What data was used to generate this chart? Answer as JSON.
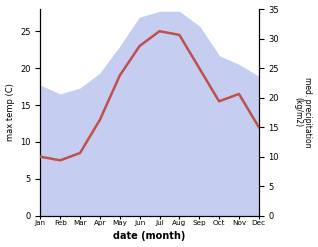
{
  "months": [
    "Jan",
    "Feb",
    "Mar",
    "Apr",
    "May",
    "Jun",
    "Jul",
    "Aug",
    "Sep",
    "Oct",
    "Nov",
    "Dec"
  ],
  "temp": [
    8.0,
    7.5,
    8.5,
    13.0,
    19.0,
    23.0,
    25.0,
    24.5,
    20.0,
    15.5,
    16.5,
    12.0
  ],
  "precip": [
    22.0,
    20.5,
    21.5,
    24.0,
    28.5,
    33.5,
    34.5,
    34.5,
    32.0,
    27.0,
    25.5,
    23.5
  ],
  "temp_color": "#c0504d",
  "precip_fill_color": "#c5cef0",
  "ylabel_left": "max temp (C)",
  "ylabel_right": "med. precipitation\n(kg/m2)",
  "xlabel": "date (month)",
  "ylim_left": [
    0,
    28
  ],
  "ylim_right": [
    0,
    35
  ],
  "yticks_left": [
    0,
    5,
    10,
    15,
    20,
    25
  ],
  "yticks_right": [
    0,
    5,
    10,
    15,
    20,
    25,
    30,
    35
  ],
  "bg_color": "#ffffff",
  "figsize": [
    3.18,
    2.47
  ],
  "dpi": 100
}
